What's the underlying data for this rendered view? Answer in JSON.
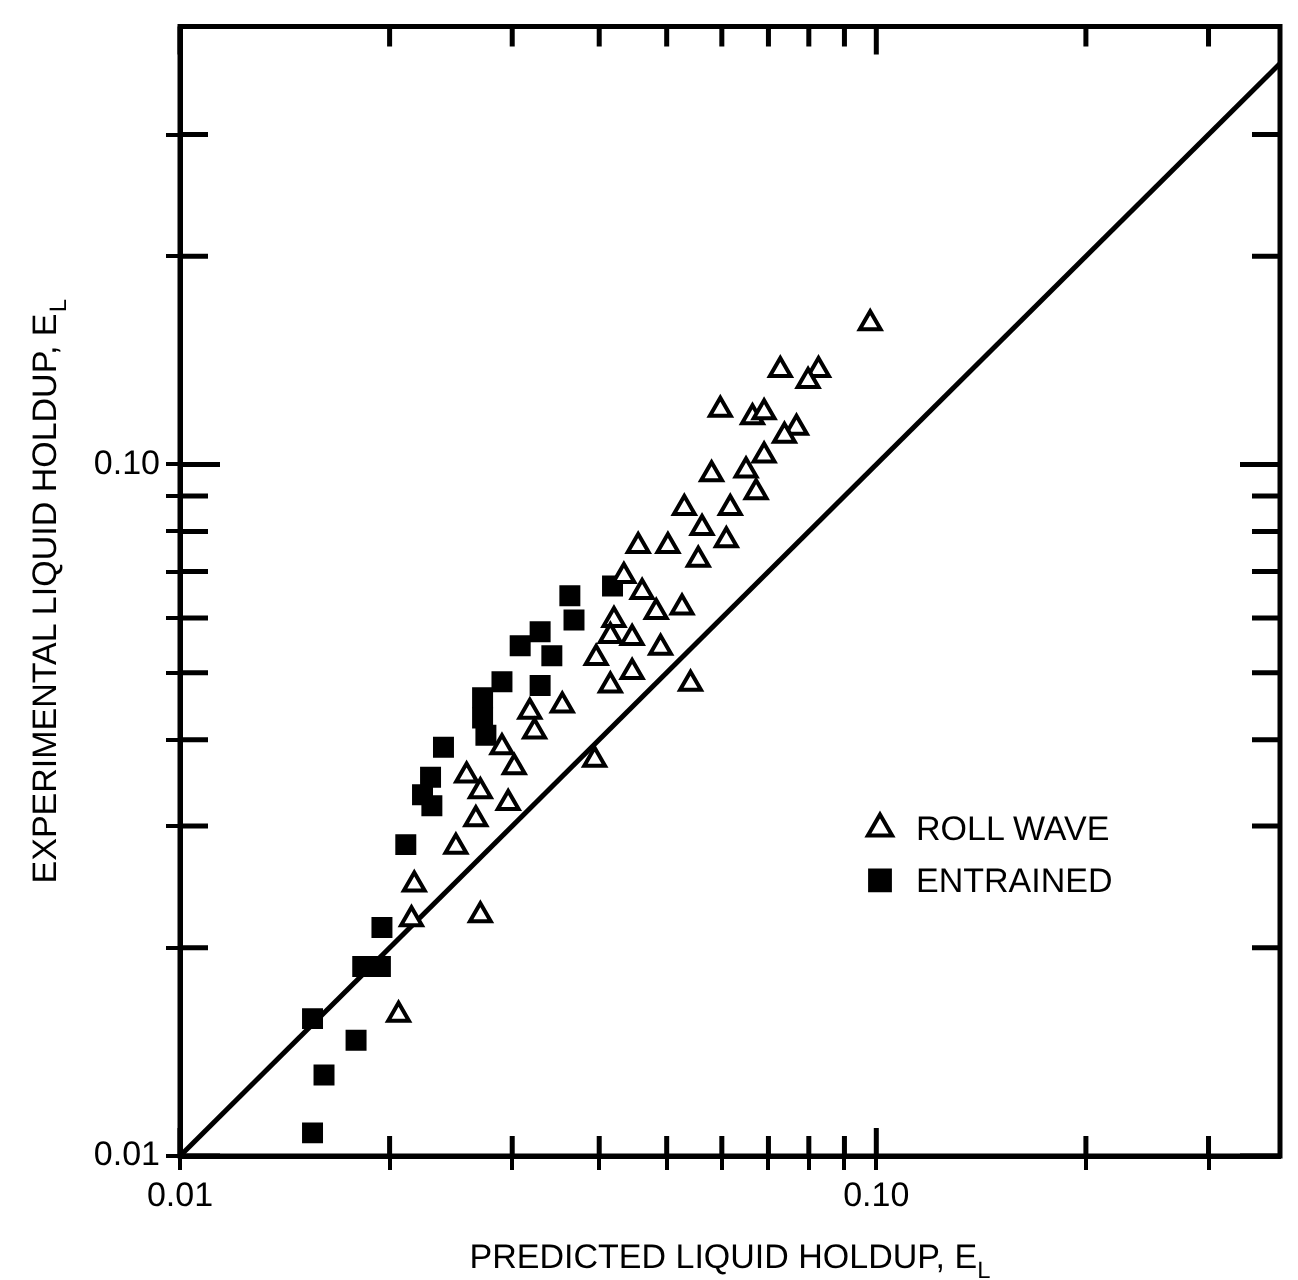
{
  "chart_data": {
    "type": "scatter",
    "xlabel": "PREDICTED LIQUID HOLDUP, E$_{L}$",
    "ylabel": "EXPERIMENTAL LIQUID HOLDUP, E$_{L}$",
    "log": "xy",
    "xlim": [
      0.01,
      0.38
    ],
    "ylim": [
      0.01,
      0.43
    ],
    "xticks": [
      0.01,
      {
        "value": 0.02,
        "label": null
      },
      {
        "value": 0.03,
        "label": null
      },
      {
        "value": 0.04,
        "label": null
      },
      {
        "value": 0.05,
        "label": null
      },
      {
        "value": 0.06,
        "label": null
      },
      {
        "value": 0.07,
        "label": null
      },
      {
        "value": 0.08,
        "label": null
      },
      {
        "value": 0.09,
        "label": null
      },
      {
        "value": 0.1,
        "label": "0.10"
      },
      {
        "value": 0.2,
        "label": null
      },
      {
        "value": 0.3,
        "label": null
      }
    ],
    "yticks": [
      0.01,
      {
        "value": 0.02,
        "label": null
      },
      {
        "value": 0.03,
        "label": null
      },
      {
        "value": 0.04,
        "label": null
      },
      {
        "value": 0.05,
        "label": null
      },
      {
        "value": 0.06,
        "label": null
      },
      {
        "value": 0.07,
        "label": null
      },
      {
        "value": 0.08,
        "label": null
      },
      {
        "value": 0.09,
        "label": null
      },
      {
        "value": 0.1,
        "label": "0.10"
      },
      {
        "value": 0.2,
        "label": null
      },
      {
        "value": 0.3,
        "label": null
      }
    ],
    "grid": false,
    "legend": "right",
    "series": [
      {
        "name": "ROLL WAVE",
        "color": "#000000",
        "marker": "triangle",
        "x": [
          0.098,
          0.0728,
          0.0826,
          0.0798,
          0.0597,
          0.0664,
          0.069,
          0.0768,
          0.0738,
          0.069,
          0.058,
          0.065,
          0.0672,
          0.0617,
          0.053,
          0.0562,
          0.0455,
          0.0502,
          0.0609,
          0.0555,
          0.0434,
          0.0461,
          0.0483,
          0.0526,
          0.042,
          0.0415,
          0.0446,
          0.049,
          0.0396,
          0.0446,
          0.0415,
          0.0541,
          0.0354,
          0.0318,
          0.0323,
          0.029,
          0.0302,
          0.0394,
          0.0258,
          0.027,
          0.0296,
          0.0266,
          0.0249,
          0.0217,
          0.0215,
          0.027,
          0.0206
        ],
        "values": [
          0.16,
          0.137,
          0.137,
          0.132,
          0.12,
          0.117,
          0.119,
          0.113,
          0.11,
          0.103,
          0.0968,
          0.098,
          0.0912,
          0.0865,
          0.0865,
          0.0809,
          0.0762,
          0.0762,
          0.0777,
          0.0728,
          0.069,
          0.0654,
          0.0612,
          0.0621,
          0.0596,
          0.0565,
          0.0561,
          0.0543,
          0.0525,
          0.0501,
          0.0479,
          0.0482,
          0.0448,
          0.0439,
          0.0411,
          0.039,
          0.0365,
          0.0374,
          0.0355,
          0.0337,
          0.0324,
          0.0307,
          0.028,
          0.0247,
          0.022,
          0.0223,
          0.016
        ]
      },
      {
        "name": "ENTRAINED",
        "color": "#000000",
        "marker": "square",
        "x": [
          0.0418,
          0.0363,
          0.0368,
          0.0329,
          0.0308,
          0.0342,
          0.029,
          0.0329,
          0.0272,
          0.0272,
          0.0275,
          0.0239,
          0.0229,
          0.0223,
          0.023,
          0.0211,
          0.0195,
          0.0194,
          0.0183,
          0.0179,
          0.0155,
          0.0161,
          0.0155
        ],
        "values": [
          0.0667,
          0.0646,
          0.0596,
          0.0573,
          0.0547,
          0.0529,
          0.0485,
          0.0479,
          0.046,
          0.043,
          0.0406,
          0.039,
          0.0353,
          0.0333,
          0.0321,
          0.0282,
          0.0214,
          0.0188,
          0.0188,
          0.0147,
          0.0158,
          0.0131,
          0.0108
        ]
      },
      {
        "type": "line",
        "color": "#000000",
        "marker": "none",
        "line_style": "solid",
        "x": [
          0.01,
          0.38
        ],
        "values": [
          0.01,
          0.38
        ]
      }
    ]
  }
}
